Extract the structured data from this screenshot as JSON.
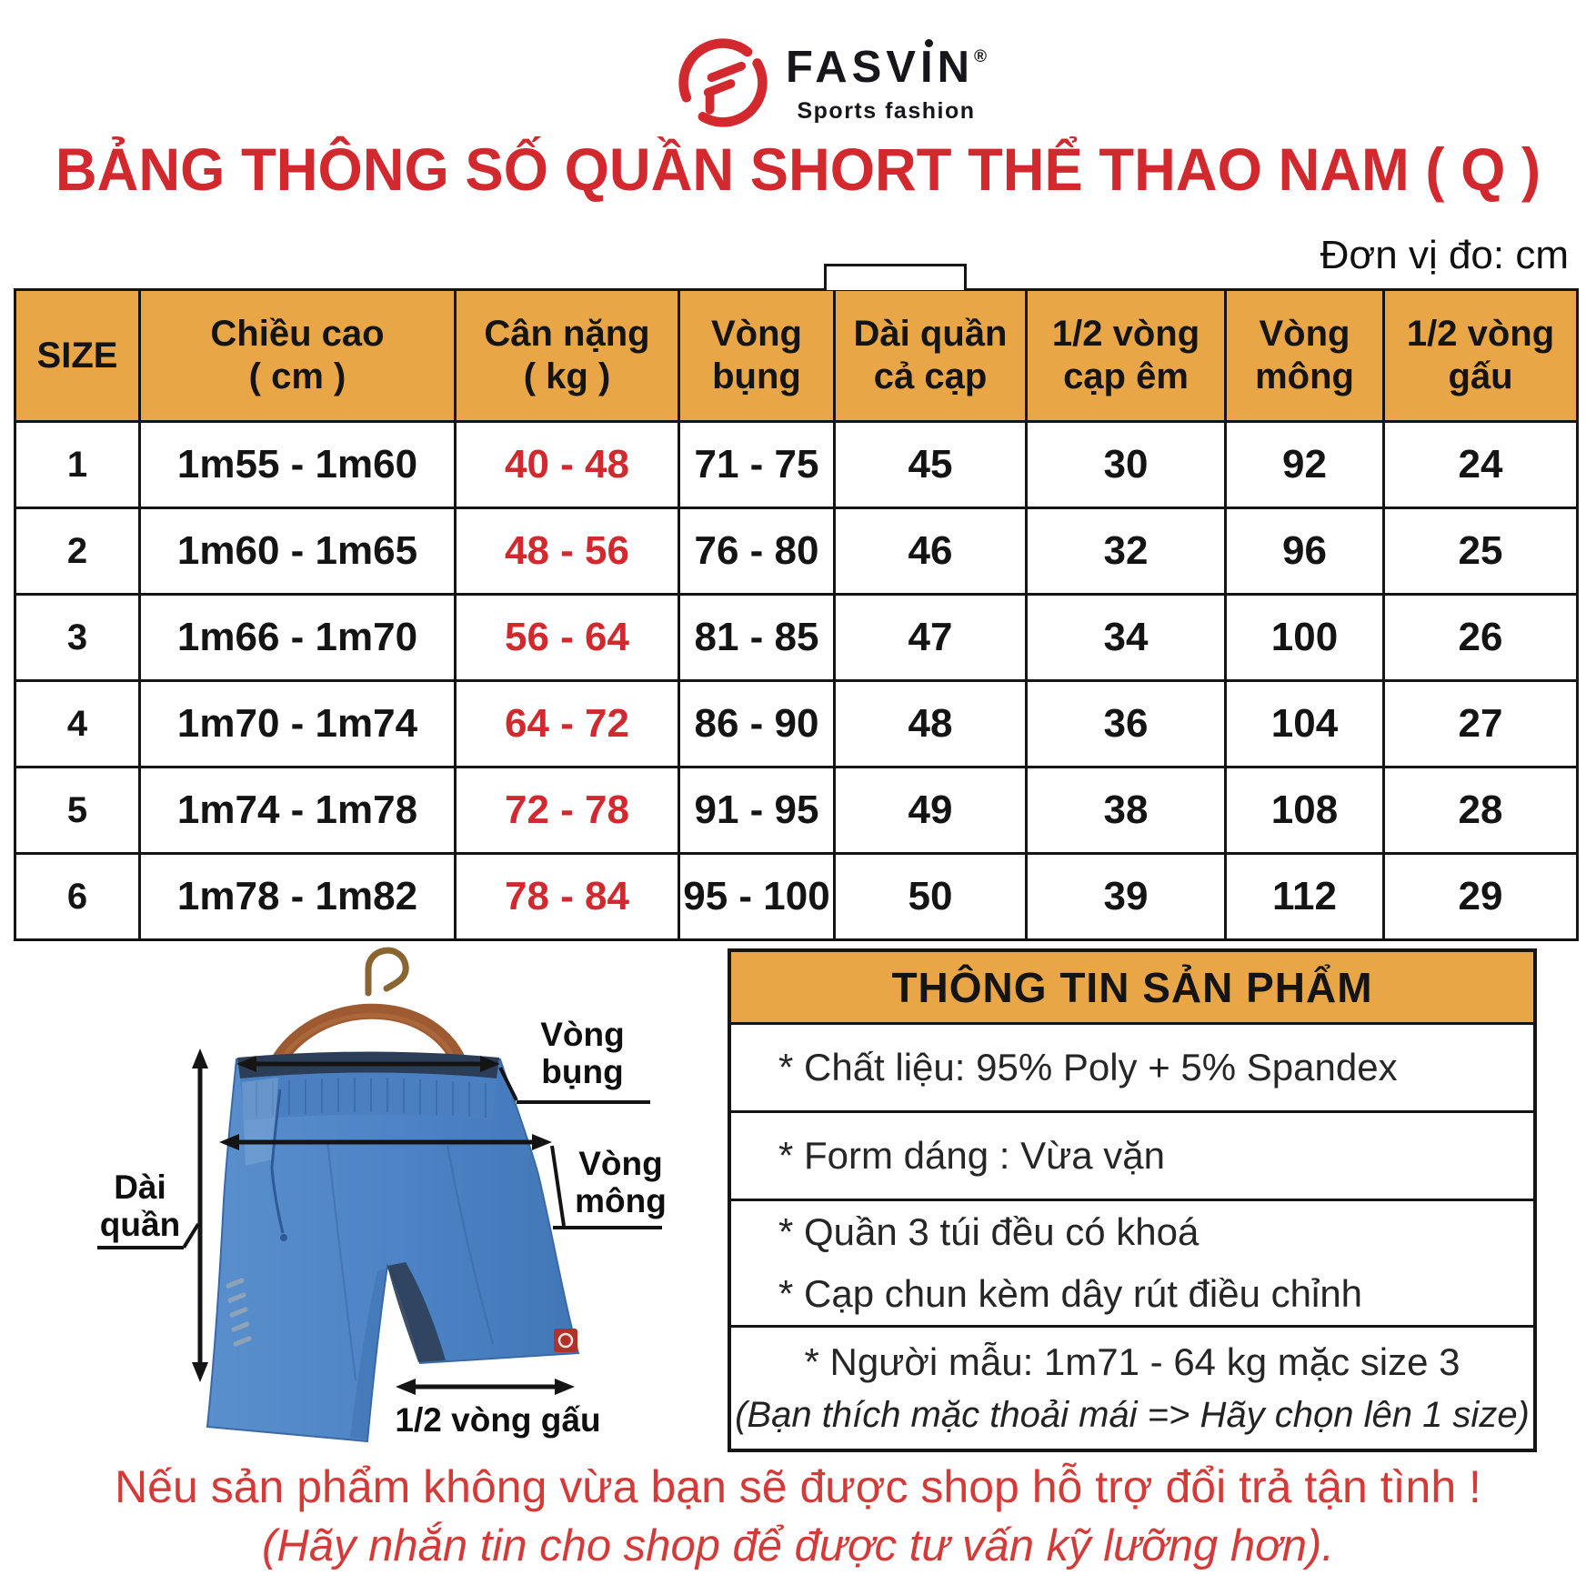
{
  "brand": {
    "name": "FASVIN",
    "registered_mark": "®",
    "tagline": "Sports fashion",
    "logo_letter": "F"
  },
  "header": {
    "title": "BẢNG THÔNG SỐ QUẦN SHORT THỂ THAO NAM ( Q )",
    "unit_note": "Đơn vị đo: cm"
  },
  "size_table": {
    "columns": [
      {
        "l1": "SIZE",
        "l2": ""
      },
      {
        "l1": "Chiều cao",
        "l2": "( cm )"
      },
      {
        "l1": "Cân nặng",
        "l2": "( kg )"
      },
      {
        "l1": "Vòng",
        "l2": "bụng"
      },
      {
        "l1": "Dài quần",
        "l2": "cả cạp"
      },
      {
        "l1": "1/2 vòng",
        "l2": "cạp êm"
      },
      {
        "l1": "Vòng",
        "l2": "mông"
      },
      {
        "l1": "1/2 vòng",
        "l2": "gấu"
      }
    ],
    "rows": [
      {
        "size": "1",
        "height": "1m55 - 1m60",
        "weight": "40 - 48",
        "waist": "71 - 75",
        "length": "45",
        "half_waistband": "30",
        "hip": "92",
        "half_hem": "24"
      },
      {
        "size": "2",
        "height": "1m60 - 1m65",
        "weight": "48 - 56",
        "waist": "76 - 80",
        "length": "46",
        "half_waistband": "32",
        "hip": "96",
        "half_hem": "25"
      },
      {
        "size": "3",
        "height": "1m66 - 1m70",
        "weight": "56 - 64",
        "waist": "81 - 85",
        "length": "47",
        "half_waistband": "34",
        "hip": "100",
        "half_hem": "26"
      },
      {
        "size": "4",
        "height": "1m70 - 1m74",
        "weight": "64 - 72",
        "waist": "86 - 90",
        "length": "48",
        "half_waistband": "36",
        "hip": "104",
        "half_hem": "27"
      },
      {
        "size": "5",
        "height": "1m74 - 1m78",
        "weight": "72 - 78",
        "waist": "91 - 95",
        "length": "49",
        "half_waistband": "38",
        "hip": "108",
        "half_hem": "28"
      },
      {
        "size": "6",
        "height": "1m78 - 1m82",
        "weight": "78 - 84",
        "waist": "95 - 100",
        "length": "50",
        "half_waistband": "39",
        "hip": "112",
        "half_hem": "29"
      }
    ]
  },
  "figure": {
    "labels": {
      "waist": "Vòng bụng",
      "hip": "Vòng mông",
      "length": "Dài quần",
      "hem": "1/2 vòng gấu"
    }
  },
  "info_box": {
    "title": "THÔNG TIN SẢN PHẨM",
    "material": "* Chất liệu: 95% Poly + 5% Spandex",
    "form": "* Form dáng : Vừa vặn",
    "pockets": "* Quần 3 túi đều có khoá",
    "waistband": "* Cạp chun kèm dây rút điều chỉnh",
    "model": "* Người mẫu: 1m71 - 64 kg mặc size 3",
    "model_note": "(Bạn thích mặc thoải mái => Hãy chọn lên 1 size)"
  },
  "footer": {
    "line1": "Nếu sản phẩm không vừa bạn sẽ được shop hỗ trợ đổi trả tận tình !",
    "line2": "(Hãy nhắn tin cho shop để được tư vấn kỹ lưỡng hơn)."
  },
  "colors": {
    "accent_red": "#D2292E",
    "footer_red": "#D43A38",
    "header_orange": "#E8A646",
    "shorts_blue": "#4C82C4"
  }
}
